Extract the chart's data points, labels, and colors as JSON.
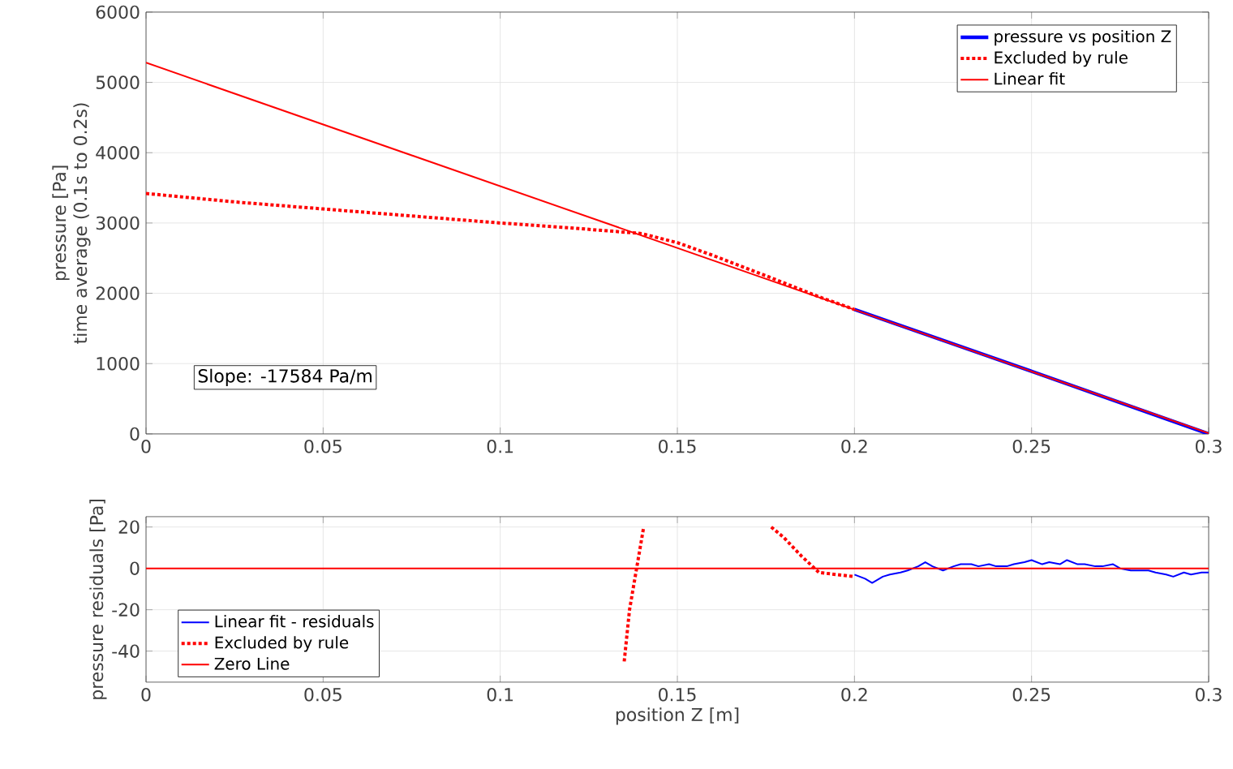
{
  "chart_data": [
    {
      "type": "line",
      "ylabel": "pressure [Pa]\ntime average (0.1s to 0.2s)",
      "xlim": [
        0,
        0.3
      ],
      "ylim": [
        0,
        6000
      ],
      "xticks": [
        0,
        0.05,
        0.1,
        0.15,
        0.2,
        0.25,
        0.3
      ],
      "yticks": [
        0,
        1000,
        2000,
        3000,
        4000,
        5000,
        6000
      ],
      "grid": true,
      "legend": "top right",
      "annotations": [
        "Slope: -17584 Pa/m"
      ],
      "series": [
        {
          "name": "pressure vs position Z",
          "color": "#0000ff",
          "x": [
            0.2,
            0.25,
            0.3
          ],
          "values": [
            1770,
            890,
            0
          ]
        },
        {
          "name": "Excluded by rule",
          "color": "#ff0000",
          "line_style": "dotted",
          "x": [
            0,
            0.025,
            0.05,
            0.075,
            0.1,
            0.12,
            0.14,
            0.15,
            0.16,
            0.175,
            0.19,
            0.2
          ],
          "values": [
            3420,
            3300,
            3200,
            3100,
            3000,
            2930,
            2850,
            2720,
            2540,
            2250,
            1950,
            1770
          ]
        },
        {
          "name": "Linear fit",
          "color": "#ff0000",
          "x": [
            0,
            0.3
          ],
          "values": [
            5280,
            10
          ]
        }
      ]
    },
    {
      "type": "line",
      "xlabel": "position Z [m]",
      "ylabel": "pressure residuals [Pa]",
      "xlim": [
        0,
        0.3
      ],
      "ylim": [
        -55,
        25
      ],
      "xticks": [
        0,
        0.05,
        0.1,
        0.15,
        0.2,
        0.25,
        0.3
      ],
      "yticks": [
        -40,
        -20,
        0,
        20
      ],
      "grid": true,
      "legend": "bottom left",
      "series": [
        {
          "name": "Linear fit - residuals",
          "color": "#0000ff",
          "x": [
            0.2,
            0.203,
            0.205,
            0.208,
            0.21,
            0.213,
            0.215,
            0.218,
            0.22,
            0.222,
            0.225,
            0.228,
            0.23,
            0.233,
            0.235,
            0.238,
            0.24,
            0.243,
            0.245,
            0.248,
            0.25,
            0.253,
            0.255,
            0.258,
            0.26,
            0.263,
            0.265,
            0.268,
            0.27,
            0.273,
            0.275,
            0.278,
            0.28,
            0.283,
            0.285,
            0.288,
            0.29,
            0.293,
            0.295,
            0.298,
            0.3
          ],
          "values": [
            -3,
            -5,
            -7,
            -4,
            -3,
            -2,
            -1,
            1,
            3,
            1,
            -1,
            1,
            2,
            2,
            1,
            2,
            1,
            1,
            2,
            3,
            4,
            2,
            3,
            2,
            4,
            2,
            2,
            1,
            1,
            2,
            0,
            -1,
            -1,
            -1,
            -2,
            -3,
            -4,
            -2,
            -3,
            -2,
            -2
          ]
        },
        {
          "name": "Excluded by rule",
          "color": "#ff0000",
          "line_style": "dotted",
          "x": [
            0.135,
            0.1365,
            0.1385,
            0.1405,
            0.16,
            0.1765,
            0.18,
            0.185,
            0.19,
            0.195,
            0.2
          ],
          "values": [
            -45,
            -20,
            0,
            20,
            null,
            20,
            15,
            6,
            -2,
            -3,
            -4
          ]
        },
        {
          "name": "Zero Line",
          "color": "#ff0000",
          "x": [
            0,
            0.3
          ],
          "values": [
            0,
            0
          ]
        }
      ]
    }
  ]
}
